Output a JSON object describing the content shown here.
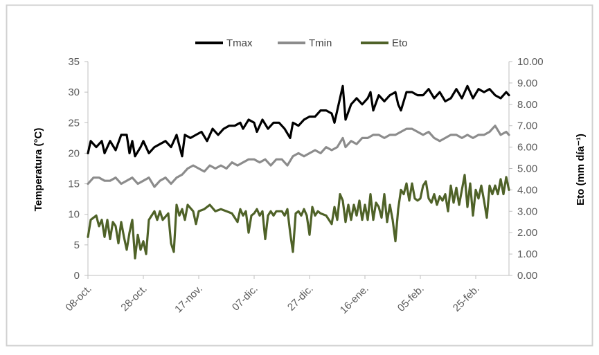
{
  "chart_data": {
    "type": "line",
    "title": "",
    "ylabel_left": "Temperatura (°C)",
    "ylabel_right": "Eto (mm día⁻¹)",
    "y_left": {
      "min": 0,
      "max": 35,
      "ticks": [
        "0",
        "5",
        "10",
        "15",
        "20",
        "25",
        "30",
        "35"
      ]
    },
    "y_right": {
      "min": 0,
      "max": 10,
      "ticks": [
        "0.00",
        "1.00",
        "2.00",
        "3.00",
        "4.00",
        "5.00",
        "6.00",
        "7.00",
        "8.00",
        "9.00",
        "10.00"
      ]
    },
    "x_categories": [
      "08-oct.",
      "28-oct.",
      "17-nov.",
      "07-dic.",
      "27-dic.",
      "16-ene.",
      "05-feb.",
      "25-feb."
    ],
    "x_tick_day_index": [
      0,
      20,
      40,
      60,
      80,
      100,
      120,
      140
    ],
    "n_days": 153,
    "grid": false,
    "legend_position": "top",
    "legend": [
      "Tmax",
      "Tmin",
      "Eto"
    ],
    "series": [
      {
        "name": "Tmax",
        "axis": "left",
        "color": "#000000",
        "anchors": [
          [
            0,
            20
          ],
          [
            1,
            22
          ],
          [
            3,
            21
          ],
          [
            5,
            22
          ],
          [
            6,
            20
          ],
          [
            8,
            22
          ],
          [
            10,
            20.5
          ],
          [
            12,
            23
          ],
          [
            14,
            23
          ],
          [
            15,
            20
          ],
          [
            16,
            22
          ],
          [
            17,
            19.5
          ],
          [
            19,
            21
          ],
          [
            20,
            22
          ],
          [
            22,
            20
          ],
          [
            24,
            21
          ],
          [
            26,
            21.5
          ],
          [
            28,
            22
          ],
          [
            30,
            21
          ],
          [
            32,
            23
          ],
          [
            34,
            19.5
          ],
          [
            35,
            23
          ],
          [
            37,
            22.5
          ],
          [
            39,
            23
          ],
          [
            41,
            23.5
          ],
          [
            43,
            22
          ],
          [
            45,
            24
          ],
          [
            47,
            23
          ],
          [
            49,
            24
          ],
          [
            51,
            24.5
          ],
          [
            53,
            24.5
          ],
          [
            55,
            25
          ],
          [
            56,
            24
          ],
          [
            58,
            25.5
          ],
          [
            60,
            25
          ],
          [
            61,
            23.5
          ],
          [
            63,
            25.5
          ],
          [
            65,
            24
          ],
          [
            67,
            25
          ],
          [
            69,
            25
          ],
          [
            71,
            24
          ],
          [
            73,
            22.5
          ],
          [
            74,
            25
          ],
          [
            76,
            24.5
          ],
          [
            78,
            25.5
          ],
          [
            80,
            26
          ],
          [
            82,
            26
          ],
          [
            84,
            27
          ],
          [
            86,
            27
          ],
          [
            88,
            26.5
          ],
          [
            89,
            25
          ],
          [
            91,
            29
          ],
          [
            92,
            31
          ],
          [
            93,
            25.5
          ],
          [
            95,
            28
          ],
          [
            97,
            29
          ],
          [
            99,
            28
          ],
          [
            101,
            29
          ],
          [
            102,
            30
          ],
          [
            103,
            27
          ],
          [
            105,
            29.5
          ],
          [
            107,
            28.5
          ],
          [
            109,
            29.5
          ],
          [
            111,
            30
          ],
          [
            112,
            28
          ],
          [
            113,
            27
          ],
          [
            115,
            30
          ],
          [
            117,
            30
          ],
          [
            119,
            29.5
          ],
          [
            121,
            29.5
          ],
          [
            123,
            30.5
          ],
          [
            125,
            29
          ],
          [
            127,
            30
          ],
          [
            129,
            28.5
          ],
          [
            131,
            29
          ],
          [
            133,
            30.5
          ],
          [
            135,
            29
          ],
          [
            137,
            31
          ],
          [
            139,
            29
          ],
          [
            141,
            30.5
          ],
          [
            143,
            30
          ],
          [
            145,
            30.5
          ],
          [
            147,
            29.5
          ],
          [
            149,
            29
          ],
          [
            151,
            30
          ],
          [
            152,
            29.5
          ]
        ]
      },
      {
        "name": "Tmin",
        "axis": "left",
        "color": "#8c8c8c",
        "anchors": [
          [
            0,
            15
          ],
          [
            2,
            16
          ],
          [
            4,
            16
          ],
          [
            6,
            15.5
          ],
          [
            8,
            15.5
          ],
          [
            10,
            16
          ],
          [
            12,
            15
          ],
          [
            14,
            15.5
          ],
          [
            16,
            16
          ],
          [
            18,
            15
          ],
          [
            20,
            15.5
          ],
          [
            22,
            16
          ],
          [
            24,
            14.5
          ],
          [
            26,
            15.5
          ],
          [
            28,
            16
          ],
          [
            30,
            15
          ],
          [
            32,
            16
          ],
          [
            34,
            16.5
          ],
          [
            36,
            17.5
          ],
          [
            38,
            18
          ],
          [
            40,
            17.5
          ],
          [
            42,
            17
          ],
          [
            44,
            18
          ],
          [
            46,
            17.5
          ],
          [
            48,
            18
          ],
          [
            50,
            17.5
          ],
          [
            52,
            18.5
          ],
          [
            54,
            18
          ],
          [
            56,
            18.5
          ],
          [
            58,
            19
          ],
          [
            60,
            19
          ],
          [
            62,
            18.5
          ],
          [
            64,
            19
          ],
          [
            66,
            18
          ],
          [
            68,
            19
          ],
          [
            70,
            19
          ],
          [
            72,
            18
          ],
          [
            74,
            19.5
          ],
          [
            76,
            20
          ],
          [
            78,
            19.5
          ],
          [
            80,
            20
          ],
          [
            82,
            20.5
          ],
          [
            84,
            20
          ],
          [
            86,
            21
          ],
          [
            88,
            20.5
          ],
          [
            90,
            21
          ],
          [
            92,
            22.5
          ],
          [
            93,
            21
          ],
          [
            95,
            22
          ],
          [
            97,
            21.5
          ],
          [
            99,
            22.5
          ],
          [
            101,
            22.5
          ],
          [
            103,
            23
          ],
          [
            105,
            23
          ],
          [
            107,
            22.5
          ],
          [
            109,
            23
          ],
          [
            111,
            23
          ],
          [
            113,
            23.5
          ],
          [
            115,
            24
          ],
          [
            117,
            24
          ],
          [
            119,
            23.5
          ],
          [
            121,
            23
          ],
          [
            123,
            23.5
          ],
          [
            125,
            22.5
          ],
          [
            127,
            22
          ],
          [
            129,
            22.5
          ],
          [
            131,
            23
          ],
          [
            133,
            23
          ],
          [
            135,
            22.5
          ],
          [
            137,
            23
          ],
          [
            139,
            22.5
          ],
          [
            141,
            23
          ],
          [
            143,
            23
          ],
          [
            145,
            23.5
          ],
          [
            147,
            24.5
          ],
          [
            149,
            23
          ],
          [
            151,
            23.5
          ],
          [
            152,
            23
          ]
        ]
      },
      {
        "name": "Eto",
        "axis": "right",
        "color": "#4f6228",
        "anchors": [
          [
            0,
            1.8
          ],
          [
            1,
            2.6
          ],
          [
            3,
            2.8
          ],
          [
            4,
            2.3
          ],
          [
            5,
            2.6
          ],
          [
            6,
            1.8
          ],
          [
            7,
            2.6
          ],
          [
            8,
            1.7
          ],
          [
            9,
            2.5
          ],
          [
            10,
            2.3
          ],
          [
            11,
            1.5
          ],
          [
            12,
            2.5
          ],
          [
            13,
            1.8
          ],
          [
            14,
            1.2
          ],
          [
            15,
            2.0
          ],
          [
            16,
            2.6
          ],
          [
            17,
            0.8
          ],
          [
            18,
            1.9
          ],
          [
            19,
            1.2
          ],
          [
            20,
            1.6
          ],
          [
            21,
            1.0
          ],
          [
            22,
            2.6
          ],
          [
            24,
            3.0
          ],
          [
            25,
            2.6
          ],
          [
            26,
            3.0
          ],
          [
            27,
            2.6
          ],
          [
            29,
            2.9
          ],
          [
            30,
            1.5
          ],
          [
            31,
            1.1
          ],
          [
            32,
            3.3
          ],
          [
            33,
            2.8
          ],
          [
            34,
            3.1
          ],
          [
            35,
            2.6
          ],
          [
            36,
            3.3
          ],
          [
            38,
            3.0
          ],
          [
            39,
            2.4
          ],
          [
            40,
            3.0
          ],
          [
            42,
            3.1
          ],
          [
            44,
            3.3
          ],
          [
            46,
            3.0
          ],
          [
            48,
            3.1
          ],
          [
            50,
            3.0
          ],
          [
            52,
            2.9
          ],
          [
            54,
            2.5
          ],
          [
            55,
            3.1
          ],
          [
            56,
            2.8
          ],
          [
            57,
            3.0
          ],
          [
            58,
            2.0
          ],
          [
            59,
            2.8
          ],
          [
            60,
            2.9
          ],
          [
            61,
            3.1
          ],
          [
            62,
            2.8
          ],
          [
            63,
            3.0
          ],
          [
            64,
            1.7
          ],
          [
            65,
            2.8
          ],
          [
            66,
            3.0
          ],
          [
            67,
            2.8
          ],
          [
            68,
            3.0
          ],
          [
            70,
            3.0
          ],
          [
            71,
            2.8
          ],
          [
            72,
            3.1
          ],
          [
            73,
            2.0
          ],
          [
            74,
            1.1
          ],
          [
            75,
            2.9
          ],
          [
            76,
            3.0
          ],
          [
            77,
            2.8
          ],
          [
            78,
            3.1
          ],
          [
            79,
            2.8
          ],
          [
            80,
            1.9
          ],
          [
            81,
            3.2
          ],
          [
            82,
            2.8
          ],
          [
            83,
            3.0
          ],
          [
            84,
            2.9
          ],
          [
            86,
            2.8
          ],
          [
            88,
            2.4
          ],
          [
            89,
            3.2
          ],
          [
            90,
            2.6
          ],
          [
            91,
            3.8
          ],
          [
            92,
            3.5
          ],
          [
            93,
            2.5
          ],
          [
            94,
            3.3
          ],
          [
            95,
            2.6
          ],
          [
            96,
            3.3
          ],
          [
            97,
            2.8
          ],
          [
            98,
            3.5
          ],
          [
            99,
            2.6
          ],
          [
            100,
            3.3
          ],
          [
            101,
            2.6
          ],
          [
            102,
            3.8
          ],
          [
            103,
            2.6
          ],
          [
            104,
            3.4
          ],
          [
            105,
            3.2
          ],
          [
            106,
            2.7
          ],
          [
            107,
            3.8
          ],
          [
            108,
            2.5
          ],
          [
            109,
            3.3
          ],
          [
            110,
            2.6
          ],
          [
            111,
            1.6
          ],
          [
            112,
            3.1
          ],
          [
            113,
            4.0
          ],
          [
            114,
            3.8
          ],
          [
            115,
            4.3
          ],
          [
            116,
            3.5
          ],
          [
            117,
            4.3
          ],
          [
            118,
            3.6
          ],
          [
            119,
            3.5
          ],
          [
            120,
            3.6
          ],
          [
            121,
            4.2
          ],
          [
            122,
            4.4
          ],
          [
            123,
            3.6
          ],
          [
            124,
            3.4
          ],
          [
            125,
            3.8
          ],
          [
            126,
            3.3
          ],
          [
            127,
            3.7
          ],
          [
            128,
            3.5
          ],
          [
            129,
            3.8
          ],
          [
            130,
            3.0
          ],
          [
            131,
            4.2
          ],
          [
            132,
            3.4
          ],
          [
            133,
            4.1
          ],
          [
            134,
            3.3
          ],
          [
            135,
            4.0
          ],
          [
            136,
            4.7
          ],
          [
            137,
            3.2
          ],
          [
            138,
            4.3
          ],
          [
            139,
            2.8
          ],
          [
            140,
            4.0
          ],
          [
            141,
            3.6
          ],
          [
            142,
            4.2
          ],
          [
            143,
            3.5
          ],
          [
            144,
            2.7
          ],
          [
            145,
            4.2
          ],
          [
            146,
            3.8
          ],
          [
            147,
            4.2
          ],
          [
            148,
            3.8
          ],
          [
            149,
            4.5
          ],
          [
            150,
            3.8
          ],
          [
            151,
            4.6
          ],
          [
            152,
            4.0
          ]
        ]
      }
    ]
  }
}
